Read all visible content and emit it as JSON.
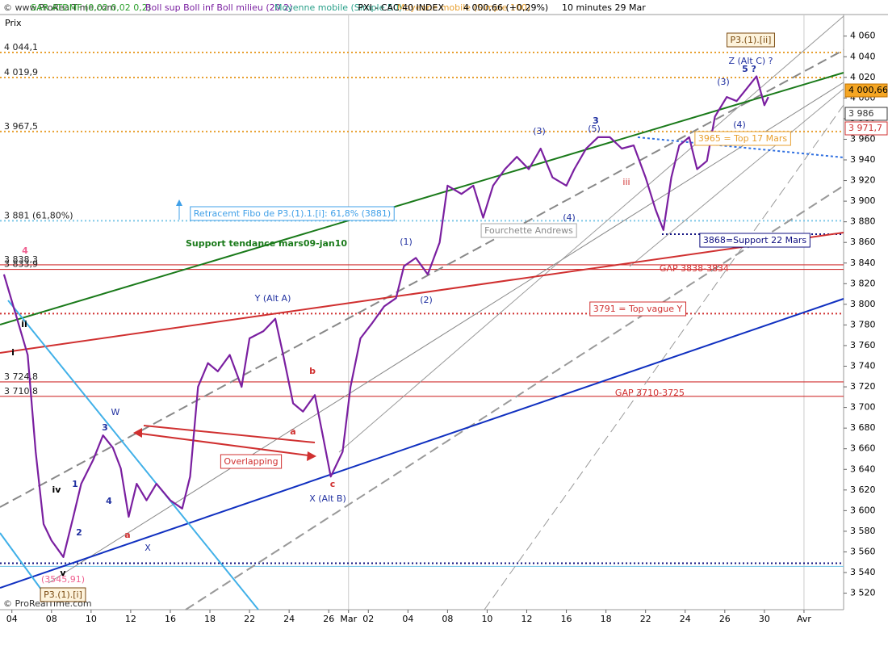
{
  "chart_data": {
    "type": "line",
    "header": {
      "site": "© www.ProRealTime.com",
      "ind1": "SAR ATDMF (0,02 0,02 0,2)",
      "ind2": "Boll sup Boll inf Boll milieu (20 2)",
      "ind3": "Moyenne mobile (Simple 50)",
      "ind4": "Moyenne mobile (Simple 100)",
      "title": "PXI - CAC 40 INDEX",
      "quote": "4 000,66 (+0,29%)",
      "period": "10 minutes  29 Mar"
    },
    "ylabel": "Prix",
    "footer": "© ProRealTime.com",
    "series": [
      {
        "name": "PXI - CAC 40 INDEX",
        "color": "#7a1fa0",
        "x": [
          -0.4,
          0.2,
          0.8,
          1.2,
          1.6,
          2.0,
          2.6,
          3.1,
          3.5,
          4.1,
          4.6,
          5.1,
          5.5,
          5.9,
          6.3,
          6.8,
          7.3,
          8.0,
          8.6,
          9.0,
          9.4,
          9.9,
          10.4,
          11.0,
          11.6,
          12.0,
          12.7,
          13.3,
          13.7,
          14.2,
          14.7,
          15.3,
          15.7,
          16.1,
          16.7,
          17.1,
          17.6,
          18.2,
          18.8,
          19.4,
          19.8,
          20.4,
          21.0,
          21.6,
          22.0,
          22.7,
          23.3,
          23.8,
          24.3,
          24.9,
          25.5,
          26.1,
          26.7,
          27.3,
          28.0,
          28.4,
          29.0,
          29.6,
          30.2,
          30.8,
          31.4,
          32.0,
          32.5,
          32.9,
          33.3,
          33.7,
          34.2,
          34.6,
          35.1,
          35.5,
          36.1,
          36.6,
          37.1,
          37.6,
          38.0,
          38.2
        ],
        "values": [
          3829,
          3790,
          3751,
          3657,
          3587,
          3571,
          3555,
          3594,
          3626,
          3649,
          3673,
          3661,
          3641,
          3594,
          3626,
          3610,
          3626,
          3610,
          3602,
          3633,
          3720,
          3743,
          3735,
          3751,
          3720,
          3767,
          3774,
          3786,
          3751,
          3704,
          3696,
          3712,
          3673,
          3633,
          3657,
          3720,
          3767,
          3782,
          3798,
          3806,
          3837,
          3845,
          3829,
          3860,
          3915,
          3907,
          3915,
          3884,
          3915,
          3931,
          3943,
          3931,
          3951,
          3923,
          3915,
          3931,
          3951,
          3962,
          3962,
          3951,
          3954,
          3923,
          3892,
          3872,
          3923,
          3954,
          3962,
          3931,
          3939,
          3982,
          4001,
          3997,
          4009,
          4021,
          3993,
          4001
        ]
      }
    ],
    "xlim": [
      -0.6,
      42
    ],
    "ylim": [
      3504,
      4095
    ],
    "xticks": [
      {
        "value": 0,
        "label": "04"
      },
      {
        "value": 2,
        "label": "08"
      },
      {
        "value": 4,
        "label": "10"
      },
      {
        "value": 6,
        "label": "12"
      },
      {
        "value": 8,
        "label": "16"
      },
      {
        "value": 10,
        "label": "18"
      },
      {
        "value": 12,
        "label": "22"
      },
      {
        "value": 14,
        "label": "24"
      },
      {
        "value": 16,
        "label": "26"
      },
      {
        "value": 17,
        "label": "Mar"
      },
      {
        "value": 18,
        "label": "02"
      },
      {
        "value": 20,
        "label": "04"
      },
      {
        "value": 22,
        "label": "08"
      },
      {
        "value": 24,
        "label": "10"
      },
      {
        "value": 26,
        "label": "12"
      },
      {
        "value": 28,
        "label": "16"
      },
      {
        "value": 30,
        "label": "18"
      },
      {
        "value": 32,
        "label": "22"
      },
      {
        "value": 34,
        "label": "24"
      },
      {
        "value": 36,
        "label": "26"
      },
      {
        "value": 38,
        "label": "30"
      },
      {
        "value": 40,
        "label": "Avr"
      }
    ],
    "yticks": [
      {
        "value": 3520,
        "label": "3 520"
      },
      {
        "value": 3540,
        "label": "3 540"
      },
      {
        "value": 3560,
        "label": "3 560"
      },
      {
        "value": 3580,
        "label": "3 580"
      },
      {
        "value": 3600,
        "label": "3 600"
      },
      {
        "value": 3620,
        "label": "3 620"
      },
      {
        "value": 3640,
        "label": "3 640"
      },
      {
        "value": 3660,
        "label": "3 660"
      },
      {
        "value": 3680,
        "label": "3 680"
      },
      {
        "value": 3700,
        "label": "3 700"
      },
      {
        "value": 3720,
        "label": "3 720"
      },
      {
        "value": 3740,
        "label": "3 740"
      },
      {
        "value": 3760,
        "label": "3 760"
      },
      {
        "value": 3780,
        "label": "3 780"
      },
      {
        "value": 3800,
        "label": "3 800"
      },
      {
        "value": 3820,
        "label": "3 820"
      },
      {
        "value": 3840,
        "label": "3 840"
      },
      {
        "value": 3860,
        "label": "3 860"
      },
      {
        "value": 3880,
        "label": "3 880"
      },
      {
        "value": 3900,
        "label": "3 900"
      },
      {
        "value": 3920,
        "label": "3 920"
      },
      {
        "value": 3940,
        "label": "3 940"
      },
      {
        "value": 3960,
        "label": "3 960"
      },
      {
        "value": 3980,
        "label": "3 980"
      },
      {
        "value": 4000,
        "label": "4 000"
      },
      {
        "value": 4020,
        "label": "4 020"
      },
      {
        "value": 4040,
        "label": "4 040"
      },
      {
        "value": 4060,
        "label": "4 060"
      }
    ],
    "levels": [
      {
        "value": 4044.1,
        "label": "4 044,1",
        "color": "#e8a030",
        "dash": true
      },
      {
        "value": 4019.9,
        "label": "4 019,9",
        "color": "#e8a030",
        "dash": true
      },
      {
        "value": 3967.5,
        "label": "3 967,5",
        "color": "#e8a030",
        "dash": true
      },
      {
        "value": 3881,
        "label": "3 881 (61,80%)",
        "color": "#7ec8e8",
        "dash": true
      },
      {
        "value": 3868,
        "color": "#101080",
        "dash": true
      },
      {
        "value": 3838.3,
        "label": "3 838,3",
        "color": "#d03030",
        "dash": false
      },
      {
        "value": 3833.9,
        "label": "3 833,9",
        "color": "#d03030",
        "dash": false
      },
      {
        "value": 3791,
        "color": "#d03030",
        "dash": true
      },
      {
        "value": 3724.8,
        "label": "3 724,8",
        "color": "#d03030",
        "dash": false
      },
      {
        "value": 3710.8,
        "label": "3 710,8",
        "color": "#d03030",
        "dash": false
      },
      {
        "value": 3549,
        "color": "#101080",
        "dash": true
      },
      {
        "value": 3545.91,
        "color": "#7ec8e8",
        "dash": false
      }
    ],
    "price_boxes": [
      "4 000,66",
      "3 986",
      "3 971,7"
    ],
    "annotations": [
      "P3.(1).[ii]",
      "Z (Alt C) ?",
      "Retracemt Fibo de P3.(1).1.[i]: 61,8% (3881)",
      "Support tendance mars09-jan10",
      "Fourchette Andrews",
      "GAP 3838-3834",
      "3791 = Top vague Y",
      "GAP 3710-3725",
      "3868=Support 22 Mars",
      "3965 = Top 17 Mars",
      "Y (Alt A)",
      "X (Alt B)",
      "W",
      "X",
      "Overlapping",
      "P3.(1).[i]",
      "(3545,91)",
      "i",
      "ii",
      "iv",
      "v",
      "1",
      "2",
      "3",
      "4",
      "a",
      "b",
      "c",
      "a",
      "(1)",
      "(2)",
      "(3)",
      "(4)",
      "(5)",
      "iii",
      "3",
      "(3)",
      "(4)",
      "5 ?",
      "4"
    ]
  }
}
